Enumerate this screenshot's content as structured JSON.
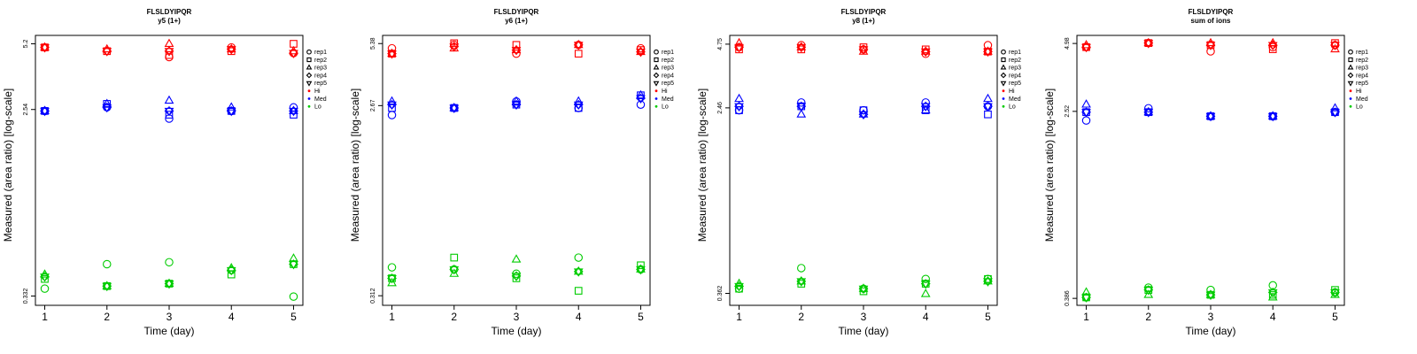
{
  "chart_data": [
    {
      "type": "scatter",
      "title": "FLSLDYIPQR",
      "subtitle": "y5 (1+)",
      "xlabel": "Time (day)",
      "ylabel": "Measured (area ratio) [log-scale]",
      "x": [
        1,
        2,
        3,
        4,
        5
      ],
      "x_tick_labels": [
        "1",
        "2",
        "3",
        "4",
        "5"
      ],
      "y_ticks": [
        0.332,
        2.54,
        5.2
      ],
      "y_tick_labels": [
        "0.332",
        "2.54",
        "5.2"
      ],
      "ylim": [
        0.3,
        5.7
      ],
      "series": [
        {
          "name": "Hi",
          "color": "#ff0000",
          "points": {
            "rep1": [
              5.0,
              null,
              4.5,
              5.0,
              4.7
            ],
            "rep2": [
              5.0,
              4.8,
              4.6,
              4.8,
              5.2
            ],
            "rep3": [
              5.0,
              4.9,
              5.2,
              4.9,
              4.8
            ],
            "rep4": [
              5.0,
              4.8,
              4.8,
              4.9,
              4.7
            ],
            "rep5": [
              5.0,
              4.8,
              4.8,
              4.9,
              4.7
            ]
          }
        },
        {
          "name": "Med",
          "color": "#0000ff",
          "points": {
            "rep1": [
              2.5,
              2.6,
              2.3,
              2.5,
              2.6
            ],
            "rep2": [
              2.5,
              2.7,
              2.4,
              2.5,
              2.4
            ],
            "rep3": [
              2.5,
              2.7,
              2.8,
              2.6,
              2.5
            ],
            "rep4": [
              2.5,
              2.6,
              2.5,
              2.5,
              2.5
            ],
            "rep5": [
              2.5,
              2.6,
              2.5,
              2.5,
              2.5
            ]
          }
        },
        {
          "name": "Lo",
          "color": "#00cc00",
          "points": {
            "rep1": [
              0.36,
              0.47,
              0.48,
              0.44,
              0.33
            ],
            "rep2": [
              0.4,
              0.37,
              0.38,
              0.42,
              0.47
            ],
            "rep3": [
              0.42,
              0.37,
              0.38,
              0.45,
              0.5
            ],
            "rep4": [
              0.41,
              0.37,
              0.38,
              0.44,
              0.47
            ],
            "rep5": [
              0.41,
              0.37,
              0.38,
              0.44,
              0.47
            ]
          }
        }
      ],
      "legend": {
        "position": "right",
        "reps": [
          "rep1",
          "rep2",
          "rep3",
          "rep4",
          "rep5"
        ],
        "groups": [
          "Hi",
          "Med",
          "Lo"
        ]
      }
    },
    {
      "type": "scatter",
      "title": "FLSLDYIPQR",
      "subtitle": "y6 (1+)",
      "xlabel": "Time (day)",
      "ylabel": "Measured (area ratio) [log-scale]",
      "x": [
        1,
        2,
        3,
        4,
        5
      ],
      "x_tick_labels": [
        "1",
        "2",
        "3",
        "4",
        "5"
      ],
      "y_ticks": [
        0.312,
        2.67,
        5.38
      ],
      "y_tick_labels": [
        "0.312",
        "2.67",
        "5.38"
      ],
      "ylim": [
        0.28,
        5.9
      ],
      "series": [
        {
          "name": "Hi",
          "color": "#ff0000",
          "points": {
            "rep1": [
              5.1,
              5.3,
              4.8,
              5.3,
              5.1
            ],
            "rep2": [
              4.8,
              5.4,
              5.3,
              4.8,
              5.0
            ],
            "rep3": [
              4.8,
              5.1,
              5.0,
              5.3,
              4.9
            ],
            "rep4": [
              4.8,
              5.2,
              5.0,
              5.3,
              4.9
            ],
            "rep5": [
              4.8,
              5.2,
              5.0,
              5.3,
              4.9
            ]
          }
        },
        {
          "name": "Med",
          "color": "#0000ff",
          "points": {
            "rep1": [
              2.4,
              2.6,
              2.8,
              2.6,
              2.7
            ],
            "rep2": [
              2.6,
              2.6,
              2.7,
              2.6,
              3.0
            ],
            "rep3": [
              2.8,
              2.6,
              2.8,
              2.8,
              3.0
            ],
            "rep4": [
              2.7,
              2.6,
              2.7,
              2.7,
              2.9
            ],
            "rep5": [
              2.7,
              2.6,
              2.7,
              2.7,
              2.9
            ]
          }
        },
        {
          "name": "Lo",
          "color": "#00cc00",
          "points": {
            "rep1": [
              0.43,
              0.42,
              0.4,
              0.48,
              0.42
            ],
            "rep2": [
              0.38,
              0.48,
              0.38,
              0.33,
              0.44
            ],
            "rep3": [
              0.36,
              0.4,
              0.47,
              0.41,
              0.42
            ],
            "rep4": [
              0.38,
              0.42,
              0.39,
              0.41,
              0.42
            ],
            "rep5": [
              0.38,
              0.42,
              0.39,
              0.41,
              0.42
            ]
          }
        }
      ],
      "legend": {
        "position": "right",
        "reps": [
          "rep1",
          "rep2",
          "rep3",
          "rep4",
          "rep5"
        ],
        "groups": [
          "Hi",
          "Med",
          "Lo"
        ]
      }
    },
    {
      "type": "scatter",
      "title": "FLSLDYIPQR",
      "subtitle": "y8 (1+)",
      "xlabel": "Time (day)",
      "ylabel": "Measured (area ratio) [log-scale]",
      "x": [
        1,
        2,
        3,
        4,
        5
      ],
      "x_tick_labels": [
        "1",
        "2",
        "3",
        "4",
        "5"
      ],
      "y_ticks": [
        0.362,
        2.46,
        4.75
      ],
      "y_tick_labels": [
        "0.362",
        "2.46",
        "4.75"
      ],
      "ylim": [
        0.32,
        5.2
      ],
      "series": [
        {
          "name": "Hi",
          "color": "#ff0000",
          "points": {
            "rep1": [
              4.6,
              4.7,
              4.5,
              4.3,
              4.7
            ],
            "rep2": [
              4.5,
              4.5,
              4.6,
              4.5,
              4.4
            ],
            "rep3": [
              4.8,
              4.6,
              4.4,
              4.4,
              4.4
            ],
            "rep4": [
              4.6,
              4.6,
              4.5,
              4.4,
              4.4
            ],
            "rep5": [
              4.6,
              4.6,
              4.5,
              4.4,
              4.4
            ]
          }
        },
        {
          "name": "Med",
          "color": "#0000ff",
          "points": {
            "rep1": [
              2.4,
              2.6,
              2.4,
              2.6,
              2.5
            ],
            "rep2": [
              2.4,
              2.5,
              2.4,
              2.4,
              2.3
            ],
            "rep3": [
              2.7,
              2.3,
              2.3,
              2.4,
              2.7
            ],
            "rep4": [
              2.5,
              2.5,
              2.3,
              2.5,
              2.5
            ],
            "rep5": [
              2.5,
              2.5,
              2.3,
              2.5,
              2.5
            ]
          }
        },
        {
          "name": "Lo",
          "color": "#00cc00",
          "points": {
            "rep1": [
              0.38,
              0.47,
              0.38,
              0.42,
              0.42
            ],
            "rep2": [
              0.38,
              0.4,
              0.37,
              0.4,
              0.42
            ],
            "rep3": [
              0.4,
              0.41,
              0.38,
              0.36,
              0.41
            ],
            "rep4": [
              0.39,
              0.41,
              0.38,
              0.4,
              0.41
            ],
            "rep5": [
              0.39,
              0.41,
              0.38,
              0.4,
              0.41
            ]
          }
        }
      ],
      "legend": {
        "position": "right",
        "reps": [
          "rep1",
          "rep2",
          "rep3",
          "rep4",
          "rep5"
        ],
        "groups": [
          "Hi",
          "Med",
          "Lo"
        ]
      }
    },
    {
      "type": "scatter",
      "title": "FLSLDYIPQR",
      "subtitle": "sum of ions",
      "xlabel": "Time (day)",
      "ylabel": "Measured (area ratio) [log-scale]",
      "x": [
        1,
        2,
        3,
        4,
        5
      ],
      "x_tick_labels": [
        "1",
        "2",
        "3",
        "4",
        "5"
      ],
      "y_ticks": [
        0.386,
        2.52,
        4.98
      ],
      "y_tick_labels": [
        "0.386",
        "2.52",
        "4.98"
      ],
      "ylim": [
        0.36,
        5.4
      ],
      "series": [
        {
          "name": "Hi",
          "color": "#ff0000",
          "points": {
            "rep1": [
              4.8,
              5.0,
              4.6,
              4.8,
              4.9
            ],
            "rep2": [
              4.8,
              5.0,
              4.9,
              4.7,
              5.0
            ],
            "rep3": [
              4.9,
              5.0,
              5.0,
              5.0,
              4.7
            ],
            "rep4": [
              4.8,
              5.0,
              4.9,
              4.9,
              4.9
            ],
            "rep5": [
              4.8,
              5.0,
              4.9,
              4.9,
              4.9
            ]
          }
        },
        {
          "name": "Med",
          "color": "#0000ff",
          "points": {
            "rep1": [
              2.3,
              2.6,
              2.4,
              2.4,
              2.5
            ],
            "rep2": [
              2.5,
              2.5,
              2.4,
              2.4,
              2.5
            ],
            "rep3": [
              2.7,
              2.5,
              2.4,
              2.4,
              2.6
            ],
            "rep4": [
              2.5,
              2.5,
              2.4,
              2.4,
              2.5
            ],
            "rep5": [
              2.5,
              2.5,
              2.4,
              2.4,
              2.5
            ]
          }
        },
        {
          "name": "Lo",
          "color": "#00cc00",
          "points": {
            "rep1": [
              0.39,
              0.43,
              0.42,
              0.44,
              0.41
            ],
            "rep2": [
              0.39,
              0.42,
              0.4,
              0.4,
              0.42
            ],
            "rep3": [
              0.41,
              0.4,
              0.4,
              0.39,
              0.4
            ],
            "rep4": [
              0.39,
              0.42,
              0.4,
              0.41,
              0.41
            ],
            "rep5": [
              0.39,
              0.42,
              0.4,
              0.41,
              0.41
            ]
          }
        }
      ],
      "legend": {
        "position": "right",
        "reps": [
          "rep1",
          "rep2",
          "rep3",
          "rep4",
          "rep5"
        ],
        "groups": [
          "Hi",
          "Med",
          "Lo"
        ]
      }
    }
  ]
}
